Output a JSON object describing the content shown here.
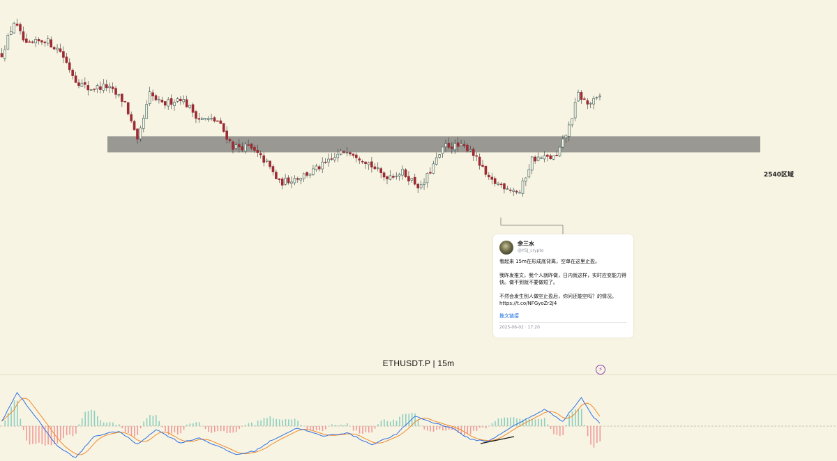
{
  "symbol": "ETHUSDT.P",
  "timeframe": "15m",
  "separator": "|",
  "colors": {
    "background": "#f8f4e3",
    "up": "#2f5b5b",
    "down": "#9c2a32",
    "zone": "#999893",
    "macd_line": "#2d6fe0",
    "signal_line": "#f0892a",
    "hist_pos": "#8ccfbf",
    "hist_neg": "#f09a9a",
    "trendline": "#111111"
  },
  "zone": {
    "label": "2540区域",
    "price_low": 2528,
    "price_high": 2548
  },
  "tweet": {
    "author": "余三水",
    "handle": "@YSJ_crypto",
    "para1": "看起来 15m在形成底背离，空单在这里止盈。",
    "para2": "我昨发推文，我个人就昨做，日内就这样，实时应变能力得快。做不到就不要做短了。",
    "para3": "不然会发生别人做空止盈后，你问还能空吗？的情况。 https://t.co/NFGyoZr2J4",
    "link": "推文链接",
    "time": "2025-06-02 · 17:20"
  },
  "chart_data": {
    "type": "candlestick",
    "y_range": [
      2440,
      2700
    ],
    "candle_count": 195,
    "anchors_index_close": [
      [
        0,
        2650
      ],
      [
        4,
        2690
      ],
      [
        8,
        2660
      ],
      [
        14,
        2668
      ],
      [
        19,
        2654
      ],
      [
        24,
        2618
      ],
      [
        28,
        2607
      ],
      [
        34,
        2610
      ],
      [
        40,
        2590
      ],
      [
        44,
        2540
      ],
      [
        48,
        2600
      ],
      [
        52,
        2587
      ],
      [
        58,
        2596
      ],
      [
        64,
        2570
      ],
      [
        70,
        2567
      ],
      [
        75,
        2535
      ],
      [
        80,
        2535
      ],
      [
        86,
        2515
      ],
      [
        90,
        2490
      ],
      [
        96,
        2497
      ],
      [
        100,
        2503
      ],
      [
        106,
        2516
      ],
      [
        112,
        2532
      ],
      [
        118,
        2518
      ],
      [
        124,
        2498
      ],
      [
        130,
        2503
      ],
      [
        136,
        2484
      ],
      [
        140,
        2512
      ],
      [
        144,
        2537
      ],
      [
        152,
        2533
      ],
      [
        158,
        2493
      ],
      [
        164,
        2485
      ],
      [
        168,
        2478
      ],
      [
        172,
        2520
      ],
      [
        180,
        2522
      ],
      [
        184,
        2560
      ],
      [
        187,
        2600
      ],
      [
        190,
        2588
      ],
      [
        193,
        2593
      ],
      [
        194,
        2597
      ]
    ],
    "indicator": {
      "name": "MACD",
      "zero_line": 0,
      "y_range": [
        -1,
        1
      ],
      "macd_anchors": [
        [
          0,
          0.15
        ],
        [
          5,
          1.0
        ],
        [
          10,
          0.4
        ],
        [
          18,
          -0.6
        ],
        [
          24,
          -0.95
        ],
        [
          30,
          -0.3
        ],
        [
          38,
          -0.15
        ],
        [
          44,
          -0.55
        ],
        [
          50,
          -0.1
        ],
        [
          58,
          -0.5
        ],
        [
          64,
          -0.35
        ],
        [
          70,
          -0.6
        ],
        [
          76,
          -0.85
        ],
        [
          82,
          -0.75
        ],
        [
          88,
          -0.4
        ],
        [
          96,
          -0.05
        ],
        [
          104,
          -0.3
        ],
        [
          112,
          -0.2
        ],
        [
          120,
          -0.55
        ],
        [
          128,
          -0.25
        ],
        [
          134,
          0.3
        ],
        [
          140,
          0.1
        ],
        [
          146,
          -0.05
        ],
        [
          152,
          -0.4
        ],
        [
          158,
          -0.45
        ],
        [
          164,
          -0.1
        ],
        [
          170,
          0.2
        ],
        [
          176,
          0.5
        ],
        [
          182,
          0.15
        ],
        [
          188,
          0.85
        ],
        [
          192,
          0.25
        ],
        [
          194,
          0.1
        ]
      ],
      "signal_lag": 2
    }
  }
}
